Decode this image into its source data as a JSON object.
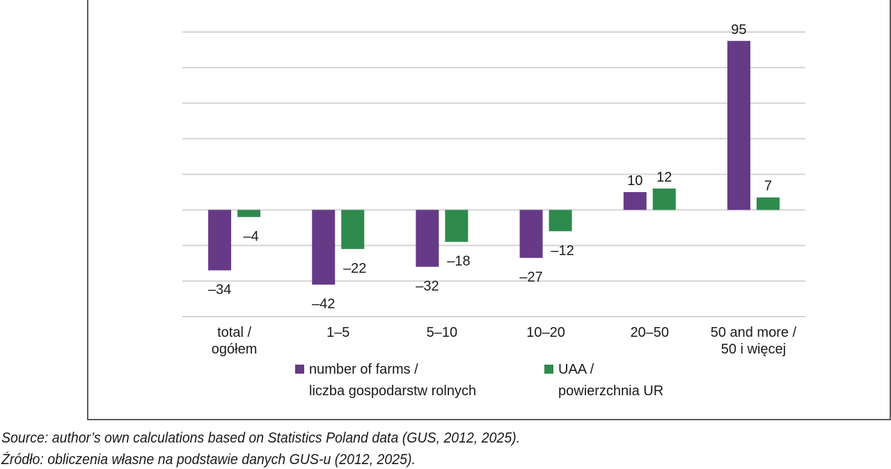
{
  "chart_data": {
    "type": "bar",
    "title": "",
    "xlabel": "",
    "ylabel": "",
    "ylim": [
      -60,
      100
    ],
    "yticks": [
      -60,
      -40,
      -20,
      0,
      20,
      40,
      60,
      80,
      100
    ],
    "y_tick_labels_shown": false,
    "grid": true,
    "categories": [
      [
        "total /",
        "ogółem"
      ],
      [
        "1–5"
      ],
      [
        "5–10"
      ],
      [
        "10–20"
      ],
      [
        "20–50"
      ],
      [
        "50 and more /",
        "50 i więcej"
      ]
    ],
    "series": [
      {
        "name": [
          "number of farms /",
          "liczba gospodarstw rolnych"
        ],
        "color": "#663a87",
        "values": [
          -34,
          -42,
          -32,
          -27,
          10,
          95
        ],
        "labels": [
          "–34",
          "–42",
          "–32",
          "–27",
          "10",
          "95"
        ]
      },
      {
        "name": [
          "UAA /",
          "powierzchnia UR"
        ],
        "color": "#2e8a4c",
        "values": [
          -4,
          -22,
          -18,
          -12,
          12,
          7
        ],
        "labels": [
          "–4",
          "–22",
          "–18",
          "–12",
          "12",
          "7"
        ]
      }
    ],
    "legend_position": "bottom"
  },
  "source": {
    "line1": "Source: author’s own calculations based on Statistics Poland data (GUS, 2012, 2025).",
    "line2": "Źródło: obliczenia własne na podstawie danych GUS-u (2012, 2025)."
  }
}
